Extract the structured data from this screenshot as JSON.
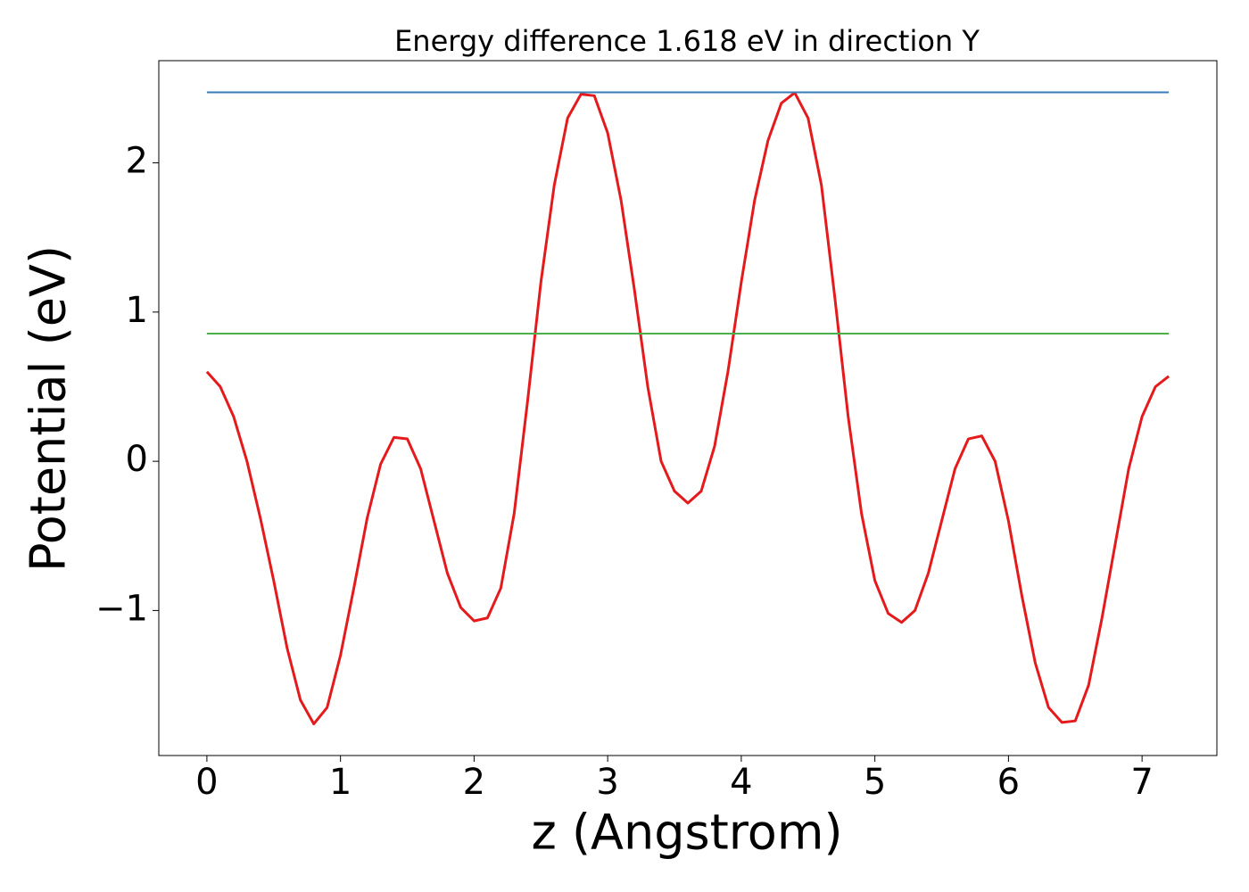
{
  "chart_data": {
    "type": "line",
    "title": "Energy difference 1.618 eV in direction Y",
    "xlabel": "z (Angstrom)",
    "ylabel": "Potential (eV)",
    "xlim": [
      -0.36,
      7.56
    ],
    "ylim": [
      -1.972,
      2.685
    ],
    "xticks": [
      0,
      1,
      2,
      3,
      4,
      5,
      6,
      7
    ],
    "yticks": [
      {
        "value": -1,
        "label": "−1"
      },
      0,
      1,
      2
    ],
    "grid": false,
    "series": [
      {
        "color": "#e41a1c",
        "x": [
          0,
          0.1,
          0.2,
          0.3,
          0.4,
          0.5,
          0.6,
          0.7,
          0.8,
          0.9,
          1.0,
          1.1,
          1.2,
          1.3,
          1.4,
          1.5,
          1.6,
          1.7,
          1.8,
          1.9,
          2.0,
          2.1,
          2.2,
          2.3,
          2.4,
          2.5,
          2.6,
          2.7,
          2.8,
          2.9,
          3.0,
          3.1,
          3.2,
          3.3,
          3.4,
          3.5,
          3.6,
          3.7,
          3.8,
          3.9,
          4.0,
          4.1,
          4.2,
          4.3,
          4.4,
          4.5,
          4.6,
          4.7,
          4.8,
          4.9,
          5.0,
          5.1,
          5.2,
          5.3,
          5.4,
          5.5,
          5.6,
          5.7,
          5.8,
          5.9,
          6.0,
          6.1,
          6.2,
          6.3,
          6.4,
          6.5,
          6.6,
          6.7,
          6.8,
          6.9,
          7.0,
          7.1,
          7.2
        ],
        "values": [
          0.6,
          0.5,
          0.3,
          0.0,
          -0.38,
          -0.8,
          -1.25,
          -1.6,
          -1.76,
          -1.65,
          -1.3,
          -0.85,
          -0.38,
          -0.02,
          0.16,
          0.15,
          -0.05,
          -0.4,
          -0.75,
          -0.98,
          -1.07,
          -1.05,
          -0.85,
          -0.35,
          0.4,
          1.2,
          1.85,
          2.3,
          2.46,
          2.45,
          2.2,
          1.75,
          1.15,
          0.5,
          0.0,
          -0.2,
          -0.28,
          -0.2,
          0.1,
          0.6,
          1.2,
          1.75,
          2.15,
          2.4,
          2.47,
          2.3,
          1.85,
          1.1,
          0.3,
          -0.35,
          -0.8,
          -1.02,
          -1.08,
          -1.0,
          -0.75,
          -0.4,
          -0.05,
          0.15,
          0.17,
          0.0,
          -0.4,
          -0.9,
          -1.35,
          -1.65,
          -1.75,
          -1.74,
          -1.5,
          -1.05,
          -0.55,
          -0.05,
          0.3,
          0.5,
          0.57
        ]
      },
      {
        "color": "#377eb8",
        "x": [
          0,
          7.2
        ],
        "values": [
          2.473,
          2.473
        ]
      },
      {
        "color": "#4daf4a",
        "x": [
          0,
          7.2
        ],
        "values": [
          0.856,
          0.856
        ]
      }
    ]
  }
}
